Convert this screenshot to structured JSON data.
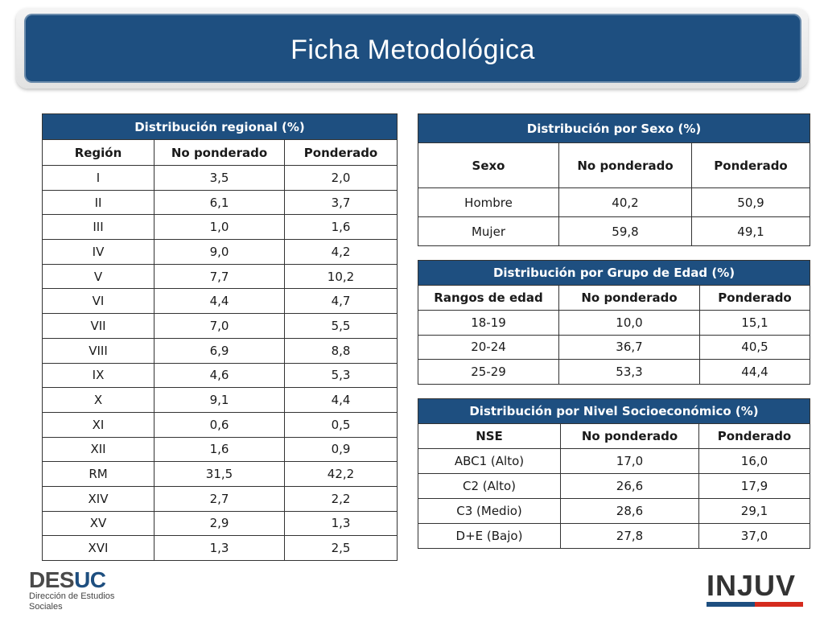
{
  "title": "Ficha Metodológica",
  "colors": {
    "header_blue": "#1e4f80",
    "stripe_blue": "#1e4f80",
    "stripe_red": "#d52b1e"
  },
  "regional": {
    "caption": "Distribución regional (%)",
    "columns": [
      "Región",
      "No ponderado",
      "Ponderado"
    ],
    "rows": [
      [
        "I",
        "3,5",
        "2,0"
      ],
      [
        "II",
        "6,1",
        "3,7"
      ],
      [
        "III",
        "1,0",
        "1,6"
      ],
      [
        "IV",
        "9,0",
        "4,2"
      ],
      [
        "V",
        "7,7",
        "10,2"
      ],
      [
        "VI",
        "4,4",
        "4,7"
      ],
      [
        "VII",
        "7,0",
        "5,5"
      ],
      [
        "VIII",
        "6,9",
        "8,8"
      ],
      [
        "IX",
        "4,6",
        "5,3"
      ],
      [
        "X",
        "9,1",
        "4,4"
      ],
      [
        "XI",
        "0,6",
        "0,5"
      ],
      [
        "XII",
        "1,6",
        "0,9"
      ],
      [
        "RM",
        "31,5",
        "42,2"
      ],
      [
        "XIV",
        "2,7",
        "2,2"
      ],
      [
        "XV",
        "2,9",
        "1,3"
      ],
      [
        "XVI",
        "1,3",
        "2,5"
      ]
    ]
  },
  "sexo": {
    "caption": "Distribución por Sexo (%)",
    "columns": [
      "Sexo",
      "No ponderado",
      "Ponderado"
    ],
    "rows": [
      [
        "Hombre",
        "40,2",
        "50,9"
      ],
      [
        "Mujer",
        "59,8",
        "49,1"
      ]
    ]
  },
  "edad": {
    "caption": "Distribución por Grupo de Edad (%)",
    "columns": [
      "Rangos de edad",
      "No ponderado",
      "Ponderado"
    ],
    "rows": [
      [
        "18-19",
        "10,0",
        "15,1"
      ],
      [
        "20-24",
        "36,7",
        "40,5"
      ],
      [
        "25-29",
        "53,3",
        "44,4"
      ]
    ]
  },
  "nse": {
    "caption": "Distribución por Nivel Socioeconómico (%)",
    "columns": [
      "NSE",
      "No ponderado",
      "Ponderado"
    ],
    "rows": [
      [
        "ABC1 (Alto)",
        "17,0",
        "16,0"
      ],
      [
        "C2 (Alto)",
        "26,6",
        "17,9"
      ],
      [
        "C3 (Medio)",
        "28,6",
        "29,1"
      ],
      [
        "D+E (Bajo)",
        "27,8",
        "37,0"
      ]
    ]
  },
  "logos": {
    "desuc": {
      "part1": "DES",
      "part2": "UC",
      "line1": "Dirección de Estudios",
      "line2": "Sociales"
    },
    "injuv": "INJUV"
  }
}
